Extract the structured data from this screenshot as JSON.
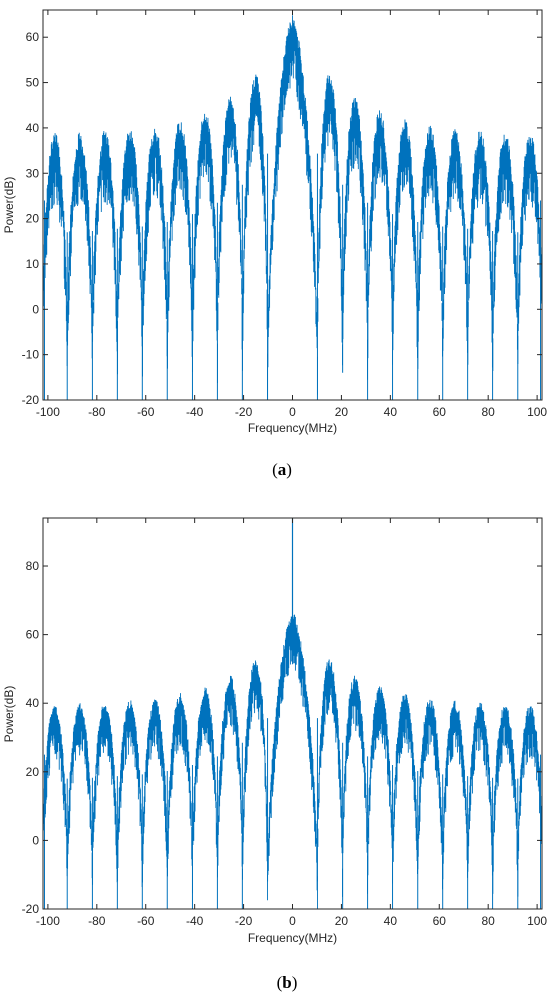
{
  "chart_data": [
    {
      "panel": "a",
      "type": "line",
      "caption_open": "(",
      "caption_letter": "a",
      "caption_close": ")",
      "xlabel": "Frequency(MHz)",
      "ylabel": "Power(dB)",
      "xlim": [
        -102,
        102
      ],
      "ylim": [
        -20,
        66
      ],
      "xticks": [
        -100,
        -80,
        -60,
        -40,
        -20,
        0,
        20,
        40,
        60,
        80,
        100
      ],
      "yticks": [
        -20,
        -10,
        0,
        10,
        20,
        30,
        40,
        50,
        60
      ],
      "grid": false,
      "color": "#0072BD",
      "null_spacing_mhz": 10.23,
      "lobe_peaks": [
        {
          "x": -97.2,
          "y": 39
        },
        {
          "x": -87.0,
          "y": 39
        },
        {
          "x": -76.7,
          "y": 39.5
        },
        {
          "x": -66.5,
          "y": 40
        },
        {
          "x": -56.3,
          "y": 40.5
        },
        {
          "x": -46.0,
          "y": 42
        },
        {
          "x": -35.8,
          "y": 44
        },
        {
          "x": -25.6,
          "y": 47
        },
        {
          "x": -15.3,
          "y": 52
        },
        {
          "x": 0,
          "y": 65
        },
        {
          "x": 15.3,
          "y": 52
        },
        {
          "x": 25.6,
          "y": 47
        },
        {
          "x": 35.8,
          "y": 44
        },
        {
          "x": 46.0,
          "y": 42
        },
        {
          "x": 56.3,
          "y": 40.5
        },
        {
          "x": 66.5,
          "y": 40
        },
        {
          "x": 76.7,
          "y": 39.5
        },
        {
          "x": 87.0,
          "y": 39
        },
        {
          "x": 97.2,
          "y": 39
        }
      ],
      "null_depths": [
        {
          "x": -92.1,
          "y": -20
        },
        {
          "x": -81.8,
          "y": -20
        },
        {
          "x": -71.6,
          "y": -20
        },
        {
          "x": -61.4,
          "y": -20
        },
        {
          "x": -51.2,
          "y": -20
        },
        {
          "x": -40.9,
          "y": -20
        },
        {
          "x": -30.7,
          "y": -20
        },
        {
          "x": -20.5,
          "y": -20
        },
        {
          "x": -10.2,
          "y": -20
        },
        {
          "x": 10.2,
          "y": -20
        },
        {
          "x": 20.5,
          "y": -14
        },
        {
          "x": 30.7,
          "y": -20
        },
        {
          "x": 40.9,
          "y": -20
        },
        {
          "x": 51.2,
          "y": -20
        },
        {
          "x": 61.4,
          "y": -20
        },
        {
          "x": 71.6,
          "y": -20
        },
        {
          "x": 81.8,
          "y": -20
        },
        {
          "x": 92.1,
          "y": -20
        }
      ],
      "spike": null
    },
    {
      "panel": "b",
      "type": "line",
      "caption_open": "(",
      "caption_letter": "b",
      "caption_close": ")",
      "xlabel": "Frequency(MHz)",
      "ylabel": "Power(dB)",
      "xlim": [
        -102,
        102
      ],
      "ylim": [
        -20,
        94
      ],
      "xticks": [
        -100,
        -80,
        -60,
        -40,
        -20,
        0,
        20,
        40,
        60,
        80,
        100
      ],
      "yticks": [
        -20,
        0,
        20,
        40,
        60,
        80
      ],
      "grid": false,
      "color": "#0072BD",
      "null_spacing_mhz": 10.23,
      "lobe_peaks": [
        {
          "x": -97.2,
          "y": 40
        },
        {
          "x": -87.0,
          "y": 40
        },
        {
          "x": -76.7,
          "y": 40.5
        },
        {
          "x": -66.5,
          "y": 41
        },
        {
          "x": -56.3,
          "y": 41.5
        },
        {
          "x": -46.0,
          "y": 43
        },
        {
          "x": -35.8,
          "y": 45
        },
        {
          "x": -25.6,
          "y": 48
        },
        {
          "x": -15.3,
          "y": 53
        },
        {
          "x": 0,
          "y": 67
        },
        {
          "x": 15.3,
          "y": 53
        },
        {
          "x": 25.6,
          "y": 48
        },
        {
          "x": 35.8,
          "y": 45
        },
        {
          "x": 46.0,
          "y": 43
        },
        {
          "x": 56.3,
          "y": 41.5
        },
        {
          "x": 66.5,
          "y": 41
        },
        {
          "x": 76.7,
          "y": 40.5
        },
        {
          "x": 87.0,
          "y": 40
        },
        {
          "x": 97.2,
          "y": 40
        }
      ],
      "null_depths": [
        {
          "x": -92.1,
          "y": -20
        },
        {
          "x": -81.8,
          "y": -20
        },
        {
          "x": -71.6,
          "y": -20
        },
        {
          "x": -61.4,
          "y": -20
        },
        {
          "x": -51.2,
          "y": -20
        },
        {
          "x": -40.9,
          "y": -20
        },
        {
          "x": -30.7,
          "y": -20
        },
        {
          "x": -20.5,
          "y": -20
        },
        {
          "x": -10.2,
          "y": -12
        },
        {
          "x": 10.2,
          "y": -12
        },
        {
          "x": 20.5,
          "y": -20
        },
        {
          "x": 30.7,
          "y": -20
        },
        {
          "x": 40.9,
          "y": -20
        },
        {
          "x": 51.2,
          "y": -20
        },
        {
          "x": 61.4,
          "y": -20
        },
        {
          "x": 71.6,
          "y": -20
        },
        {
          "x": 81.8,
          "y": -20
        },
        {
          "x": 92.1,
          "y": -20
        }
      ],
      "spike": {
        "x": 0,
        "y": 94
      }
    }
  ]
}
